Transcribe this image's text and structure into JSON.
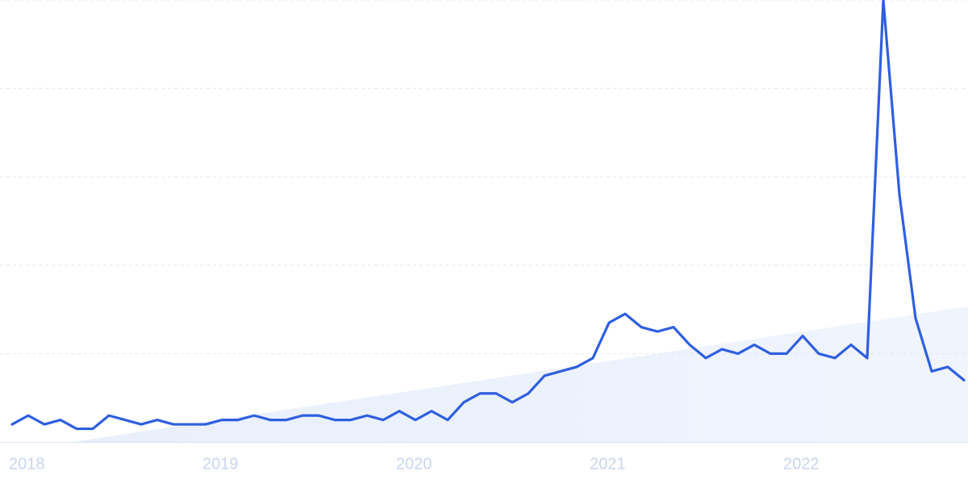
{
  "chart_data": {
    "type": "line",
    "categories": [
      "2018",
      null,
      null,
      null,
      null,
      null,
      null,
      null,
      null,
      null,
      null,
      null,
      "2019",
      null,
      null,
      null,
      null,
      null,
      null,
      null,
      null,
      null,
      null,
      null,
      "2020",
      null,
      null,
      null,
      null,
      null,
      null,
      null,
      null,
      null,
      null,
      null,
      "2021",
      null,
      null,
      null,
      null,
      null,
      null,
      null,
      null,
      null,
      null,
      null,
      "2022",
      null,
      null,
      null,
      null,
      null,
      null,
      null,
      null,
      null,
      null,
      null
    ],
    "series": [
      {
        "color": "#2f5fdf",
        "values": [
          4,
          6,
          4,
          5,
          3,
          3,
          6,
          5,
          4,
          5,
          4,
          4,
          4,
          5,
          5,
          6,
          5,
          5,
          6,
          6,
          5,
          5,
          6,
          5,
          7,
          5,
          7,
          5,
          9,
          11,
          11,
          9,
          11,
          15,
          16,
          17,
          19,
          27,
          29,
          26,
          25,
          26,
          22,
          19,
          21,
          20,
          22,
          20,
          20,
          24,
          20,
          19,
          22,
          19,
          100,
          56,
          28,
          16,
          17,
          14
        ]
      }
    ],
    "ylim": [
      0,
      100
    ],
    "yticks": [
      0,
      20,
      40,
      60,
      80,
      100
    ],
    "grid": true
  }
}
